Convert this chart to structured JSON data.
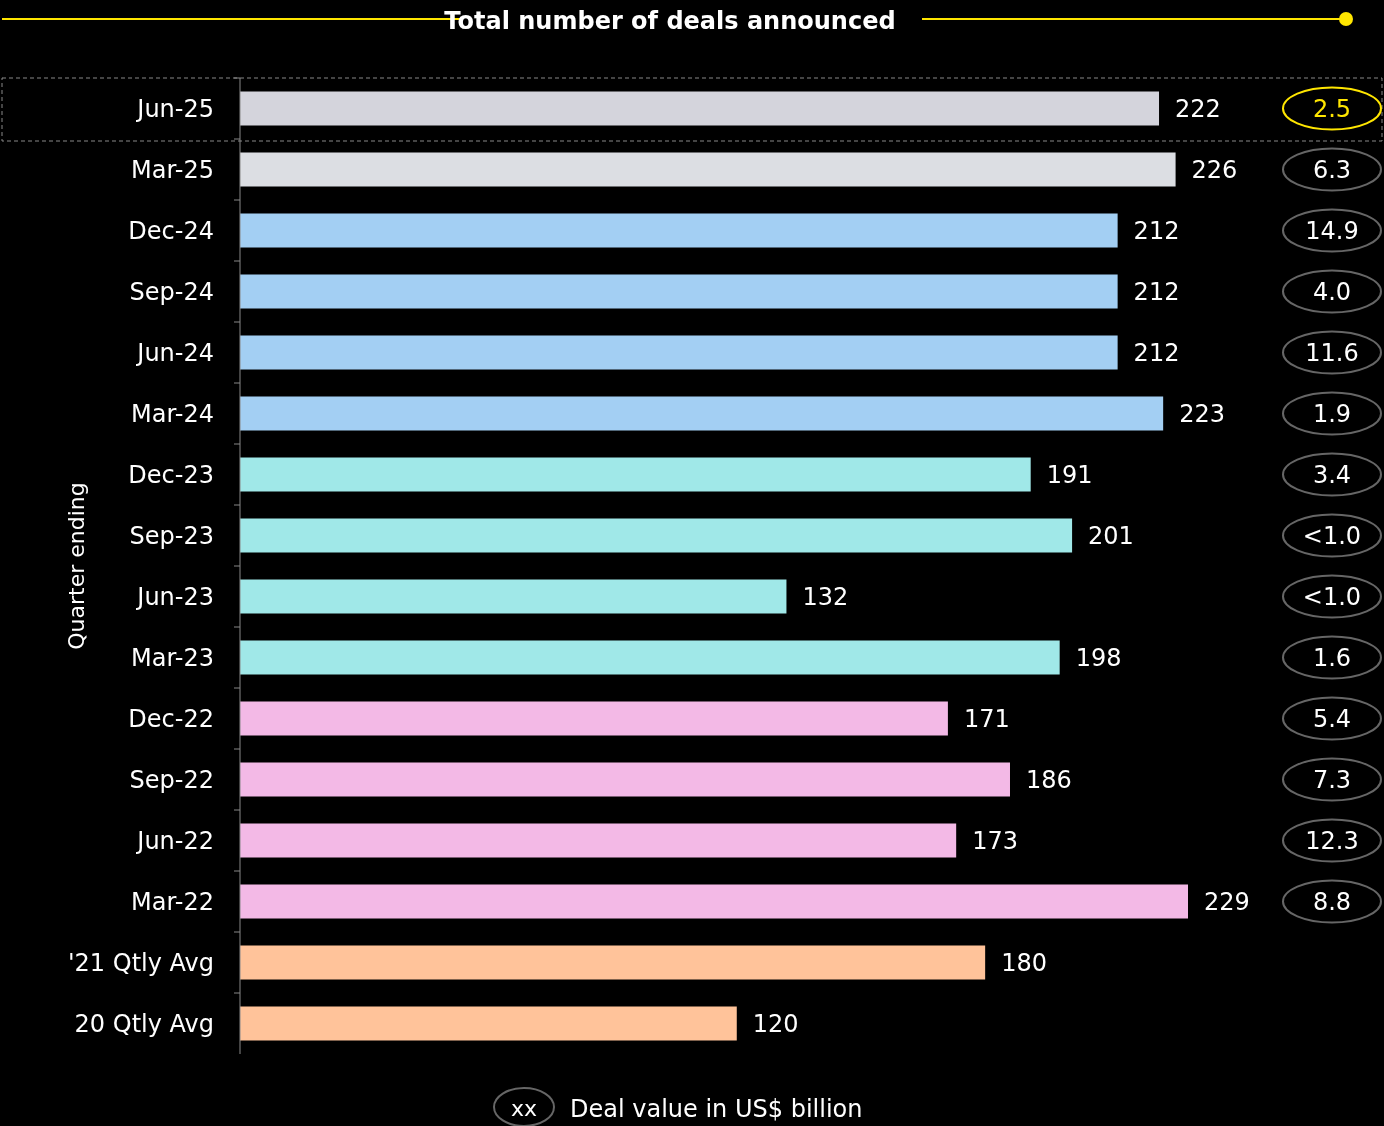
{
  "chart_data": {
    "type": "bar",
    "orientation": "horizontal",
    "title": "Total number of deals announced",
    "ylabel": "Quarter ending",
    "categories": [
      "Jun-25",
      "Mar-25",
      "Dec-24",
      "Sep-24",
      "Jun-24",
      "Mar-24",
      "Dec-23",
      "Sep-23",
      "Jun-23",
      "Mar-23",
      "Dec-22",
      "Sep-22",
      "Jun-22",
      "Mar-22",
      "'21 Qtly Avg",
      "20 Qtly Avg"
    ],
    "values": [
      222,
      226,
      212,
      212,
      212,
      223,
      191,
      201,
      132,
      198,
      171,
      186,
      173,
      229,
      180,
      120
    ],
    "colors": [
      "#d4d4dc",
      "#dcdee3",
      "#a3cff3",
      "#a3cff3",
      "#a3cff3",
      "#a3cff3",
      "#a0e8e8",
      "#a0e8e8",
      "#a0e8e8",
      "#a0e8e8",
      "#f3b9e6",
      "#f3b9e6",
      "#f3b9e6",
      "#f3b9e6",
      "#ffc39a",
      "#ffc39a"
    ],
    "data_labels": true,
    "annotations": [
      "2.5",
      "6.3",
      "14.9",
      "4.0",
      "11.6",
      "1.9",
      "3.4",
      "<1.0",
      "<1.0",
      "1.6",
      "5.4",
      "7.3",
      "12.3",
      "8.8",
      "xx",
      "Deal value in US$ billion"
    ]
  }
}
